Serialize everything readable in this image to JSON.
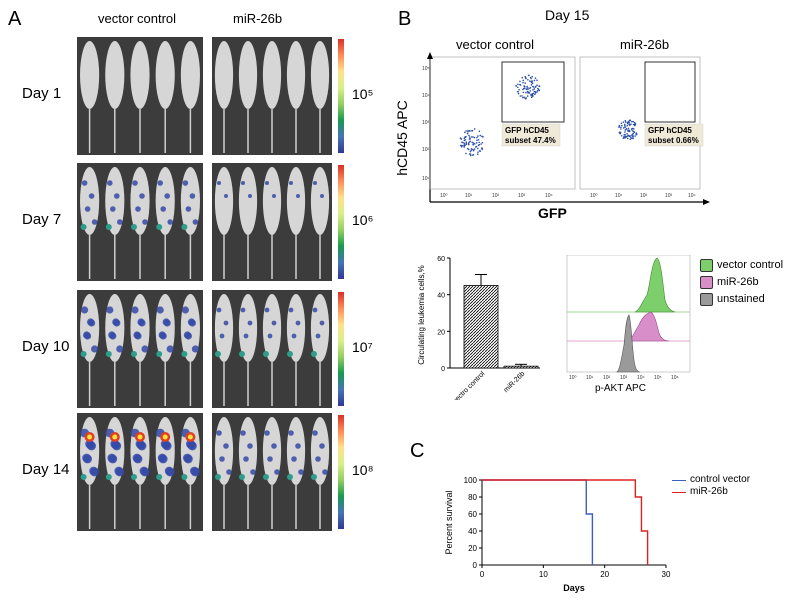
{
  "panelA": {
    "letter": "A",
    "col_vector": "vector control",
    "col_mir": "miR-26b",
    "rows": [
      {
        "label": "Day 1",
        "scale": "10⁵"
      },
      {
        "label": "Day 7",
        "scale": "10⁶"
      },
      {
        "label": "Day 10",
        "scale": "10⁷"
      },
      {
        "label": "Day 14",
        "scale": "10⁸"
      }
    ]
  },
  "panelB": {
    "letter": "B",
    "title": "Day 15",
    "flow": {
      "col_vector": "vector control",
      "col_mir": "miR-26b",
      "ylabel": "hCD45 APC",
      "xlabel": "GFP",
      "gate_vector_line1": "GFP hCD45",
      "gate_vector_line2": "subset 47.4%",
      "gate_mir_line1": "GFP hCD45",
      "gate_mir_line2": "subset 0.66%"
    },
    "hist_axis_label": "p-AKT  APC",
    "legend": [
      {
        "label": "vector control",
        "color": "#7ccf6a"
      },
      {
        "label": "miR-26b",
        "color": "#d88ec8"
      },
      {
        "label": "unstained",
        "color": "#9a9a9a"
      }
    ]
  },
  "panelC": {
    "letter": "C"
  },
  "chart_data": [
    {
      "type": "bar",
      "title": "",
      "ylabel": "Circulating leukemia cells,%",
      "categories": [
        "vectro control",
        "miR-26b"
      ],
      "values": [
        45,
        1
      ],
      "errors": [
        6,
        1
      ],
      "ylim": [
        0,
        60
      ],
      "yticks": [
        0,
        20,
        40,
        60
      ]
    },
    {
      "type": "line",
      "title": "",
      "xlabel": "Days",
      "ylabel": "Percent survival",
      "xlim": [
        0,
        30
      ],
      "ylim": [
        0,
        100
      ],
      "xticks": [
        0,
        10,
        20,
        30
      ],
      "yticks": [
        0,
        20,
        40,
        60,
        80,
        100
      ],
      "series": [
        {
          "name": "control vector",
          "color": "#3b5fbf",
          "points": [
            [
              0,
              100
            ],
            [
              17,
              100
            ],
            [
              17,
              60
            ],
            [
              18,
              60
            ],
            [
              18,
              0
            ]
          ]
        },
        {
          "name": "miR-26b",
          "color": "#e02020",
          "points": [
            [
              0,
              100
            ],
            [
              25,
              100
            ],
            [
              25,
              80
            ],
            [
              26,
              80
            ],
            [
              26,
              40
            ],
            [
              27,
              40
            ],
            [
              27,
              0
            ]
          ]
        }
      ]
    }
  ]
}
